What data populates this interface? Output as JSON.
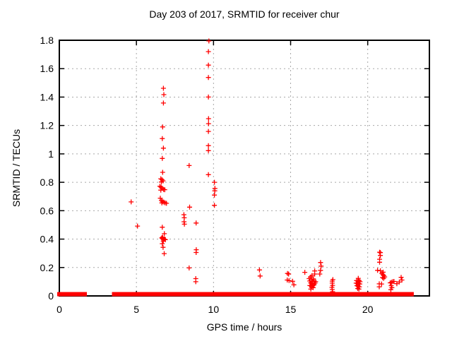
{
  "chart_data": {
    "type": "scatter",
    "title": "Day 203 of 2017, SRMTID for receiver chur",
    "xlabel": "GPS time / hours",
    "ylabel": "SRMTID / TECUs",
    "xlim": [
      0,
      24
    ],
    "ylim": [
      0,
      1.8
    ],
    "xticks": [
      0,
      5,
      10,
      15,
      20
    ],
    "xtick_labels": [
      "0",
      "5",
      "10",
      "15",
      "20"
    ],
    "yticks": [
      0,
      0.2,
      0.4,
      0.6,
      0.8,
      1,
      1.2,
      1.4,
      1.6,
      1.8
    ],
    "ytick_labels": [
      "0",
      "0.2",
      "0.4",
      "0.6",
      "0.8",
      "1",
      "1.2",
      "1.4",
      "1.6",
      "1.8"
    ],
    "grid": true,
    "legend": false,
    "marker": "plus",
    "colors": {
      "marker": "#ff0000",
      "grid": "#a8a8a8",
      "border": "#000000",
      "text": "#000000",
      "background": "#ffffff"
    },
    "near_zero_band_segments_hours": [
      [
        0.0,
        1.65
      ],
      [
        3.55,
        6.67
      ],
      [
        6.85,
        8.87
      ],
      [
        9.05,
        9.7
      ],
      [
        9.86,
        16.26
      ],
      [
        16.4,
        16.58
      ],
      [
        16.7,
        17.9
      ],
      [
        18.05,
        19.29
      ],
      [
        19.4,
        20.8
      ],
      [
        20.95,
        21.15
      ],
      [
        21.3,
        21.62
      ],
      [
        21.72,
        22.85
      ]
    ],
    "series": [
      {
        "name": "SRMTID",
        "points": [
          [
            4.66,
            0.662
          ],
          [
            5.07,
            0.492
          ],
          [
            6.75,
            1.462
          ],
          [
            6.78,
            1.417
          ],
          [
            6.75,
            1.358
          ],
          [
            6.7,
            1.19
          ],
          [
            6.68,
            1.108
          ],
          [
            6.75,
            1.04
          ],
          [
            6.68,
            0.968
          ],
          [
            6.7,
            0.87
          ],
          [
            6.58,
            0.825
          ],
          [
            6.66,
            0.818
          ],
          [
            6.73,
            0.81
          ],
          [
            6.62,
            0.802
          ],
          [
            6.52,
            0.772
          ],
          [
            6.6,
            0.765
          ],
          [
            6.68,
            0.758
          ],
          [
            6.76,
            0.75
          ],
          [
            6.58,
            0.745
          ],
          [
            6.84,
            0.748
          ],
          [
            6.55,
            0.688
          ],
          [
            6.62,
            0.672
          ],
          [
            6.7,
            0.665
          ],
          [
            6.78,
            0.66
          ],
          [
            6.86,
            0.655
          ],
          [
            6.95,
            0.652
          ],
          [
            6.65,
            0.655
          ],
          [
            6.68,
            0.484
          ],
          [
            6.81,
            0.438
          ],
          [
            6.64,
            0.408
          ],
          [
            6.7,
            0.414
          ],
          [
            6.7,
            0.402
          ],
          [
            6.76,
            0.398
          ],
          [
            6.82,
            0.4
          ],
          [
            6.88,
            0.396
          ],
          [
            6.74,
            0.386
          ],
          [
            6.68,
            0.368
          ],
          [
            6.73,
            0.342
          ],
          [
            6.8,
            0.298
          ],
          [
            8.08,
            0.572
          ],
          [
            8.1,
            0.55
          ],
          [
            8.09,
            0.522
          ],
          [
            8.11,
            0.505
          ],
          [
            8.42,
            0.918
          ],
          [
            8.45,
            0.625
          ],
          [
            8.42,
            0.197
          ],
          [
            8.87,
            0.513
          ],
          [
            8.88,
            0.325
          ],
          [
            8.87,
            0.306
          ],
          [
            8.85,
            0.122
          ],
          [
            8.85,
            0.1
          ],
          [
            9.7,
            1.795
          ],
          [
            9.67,
            1.72
          ],
          [
            9.67,
            1.625
          ],
          [
            9.67,
            1.538
          ],
          [
            9.67,
            1.4
          ],
          [
            9.68,
            1.248
          ],
          [
            9.68,
            1.213
          ],
          [
            9.67,
            1.158
          ],
          [
            9.67,
            1.058
          ],
          [
            9.67,
            1.023
          ],
          [
            9.67,
            0.854
          ],
          [
            10.06,
            0.8
          ],
          [
            10.09,
            0.757
          ],
          [
            10.08,
            0.74
          ],
          [
            10.06,
            0.71
          ],
          [
            10.06,
            0.638
          ],
          [
            12.98,
            0.183
          ],
          [
            13.02,
            0.14
          ],
          [
            14.8,
            0.158
          ],
          [
            14.87,
            0.154
          ],
          [
            14.78,
            0.112
          ],
          [
            14.9,
            0.108
          ],
          [
            15.13,
            0.103
          ],
          [
            15.21,
            0.078
          ],
          [
            15.92,
            0.166
          ],
          [
            16.56,
            0.176
          ],
          [
            16.56,
            0.154
          ],
          [
            16.89,
            0.154
          ],
          [
            16.94,
            0.235
          ],
          [
            16.98,
            0.21
          ],
          [
            16.94,
            0.18
          ],
          [
            16.2,
            0.122
          ],
          [
            16.29,
            0.133
          ],
          [
            16.38,
            0.142
          ],
          [
            16.37,
            0.116
          ],
          [
            16.24,
            0.105
          ],
          [
            16.43,
            0.1
          ],
          [
            16.48,
            0.12
          ],
          [
            16.53,
            0.105
          ],
          [
            16.3,
            0.092
          ],
          [
            16.34,
            0.09
          ],
          [
            16.41,
            0.085
          ],
          [
            16.52,
            0.078
          ],
          [
            16.25,
            0.073
          ],
          [
            16.35,
            0.065
          ],
          [
            16.44,
            0.072
          ],
          [
            16.46,
            0.058
          ],
          [
            16.31,
            0.048
          ],
          [
            16.58,
            0.09
          ],
          [
            16.62,
            0.1
          ],
          [
            17.74,
            0.115
          ],
          [
            17.7,
            0.104
          ],
          [
            17.7,
            0.09
          ],
          [
            17.72,
            0.074
          ],
          [
            17.68,
            0.06
          ],
          [
            17.7,
            0.045
          ],
          [
            17.72,
            0.03
          ],
          [
            19.39,
            0.124
          ],
          [
            19.28,
            0.108
          ],
          [
            19.36,
            0.106
          ],
          [
            19.44,
            0.108
          ],
          [
            19.5,
            0.1
          ],
          [
            19.25,
            0.09
          ],
          [
            19.33,
            0.088
          ],
          [
            19.41,
            0.086
          ],
          [
            19.49,
            0.084
          ],
          [
            19.3,
            0.072
          ],
          [
            19.38,
            0.068
          ],
          [
            19.46,
            0.064
          ],
          [
            19.35,
            0.052
          ],
          [
            19.43,
            0.048
          ],
          [
            20.77,
            0.308
          ],
          [
            20.82,
            0.305
          ],
          [
            20.82,
            0.285
          ],
          [
            20.77,
            0.258
          ],
          [
            20.77,
            0.237
          ],
          [
            20.64,
            0.18
          ],
          [
            20.82,
            0.177
          ],
          [
            21.0,
            0.167
          ],
          [
            20.92,
            0.158
          ],
          [
            20.98,
            0.15
          ],
          [
            21.04,
            0.142
          ],
          [
            21.1,
            0.134
          ],
          [
            20.96,
            0.13
          ],
          [
            21.03,
            0.124
          ],
          [
            20.75,
            0.085
          ],
          [
            20.9,
            0.084
          ],
          [
            20.75,
            0.064
          ],
          [
            21.46,
            0.092
          ],
          [
            21.54,
            0.096
          ],
          [
            21.62,
            0.1
          ],
          [
            21.7,
            0.102
          ],
          [
            21.52,
            0.072
          ],
          [
            21.57,
            0.058
          ],
          [
            21.5,
            0.044
          ],
          [
            21.89,
            0.086
          ],
          [
            22.05,
            0.098
          ],
          [
            22.17,
            0.131
          ],
          [
            22.22,
            0.112
          ]
        ]
      }
    ]
  }
}
